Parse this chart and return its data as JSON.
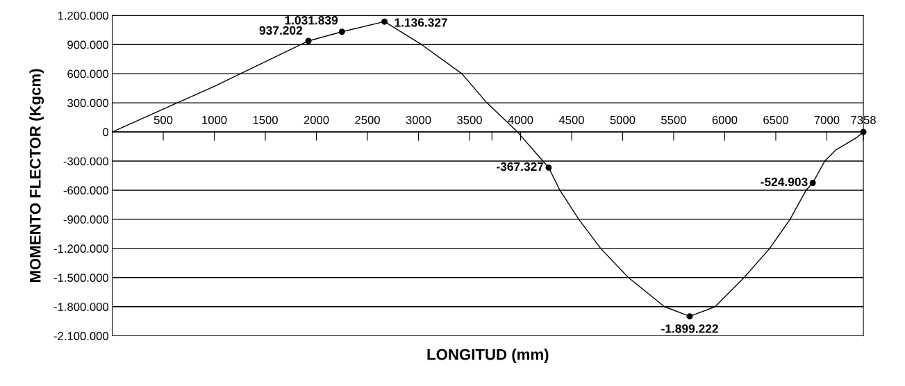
{
  "chart_data": {
    "type": "line",
    "xlabel": "LONGITUD (mm)",
    "ylabel": "MOMENTO FLECTOR (Kgcm)",
    "xlim": [
      0,
      7358
    ],
    "ylim": [
      -2100000,
      1200000
    ],
    "xticks": [
      500,
      1000,
      1500,
      2000,
      2500,
      3000,
      3500,
      {
        "value": 3720,
        "label": null
      },
      4000,
      4500,
      5000,
      5500,
      6000,
      6500,
      7000,
      7358
    ],
    "yticks": [
      {
        "value": -2100000,
        "label": "-2.100.000"
      },
      {
        "value": -1800000,
        "label": "-1.800.000"
      },
      {
        "value": -1500000,
        "label": "-1.500.000"
      },
      {
        "value": -1200000,
        "label": "-1.200.000"
      },
      {
        "value": -900000,
        "label": "-900.000"
      },
      {
        "value": -600000,
        "label": "-600.000"
      },
      {
        "value": -300000,
        "label": "-300.000"
      },
      0,
      {
        "value": 300000,
        "label": "300.000"
      },
      {
        "value": 600000,
        "label": "600.000"
      },
      {
        "value": 900000,
        "label": "900.000"
      },
      {
        "value": 1200000,
        "label": "1.200.000"
      }
    ],
    "grid": "y",
    "legend": false,
    "series": [
      {
        "color": "#000000",
        "marker": "none",
        "line_style": "solid",
        "x": [
          0,
          1000,
          1922,
          2250,
          2667,
          3030,
          3425,
          3670,
          3970,
          4275,
          4385,
          4570,
          4785,
          5056,
          5410,
          5657,
          5905,
          6190,
          6440,
          6640,
          6797,
          6862,
          6980,
          7090,
          7290,
          7358
        ],
        "values": [
          0,
          470000,
          937202,
          1031839,
          1136327,
          900000,
          600000,
          300000,
          0,
          -367327,
          -600000,
          -900000,
          -1200000,
          -1500000,
          -1800000,
          -1899222,
          -1800000,
          -1500000,
          -1200000,
          -900000,
          -600000,
          -524903,
          -300000,
          -184000,
          -60000,
          0
        ]
      },
      {
        "type": "scatter",
        "color": "#000000",
        "marker": "circle",
        "x": [
          1922,
          2250,
          2667,
          4275,
          5657,
          6862,
          7358
        ],
        "values": [
          937202,
          1031839,
          1136327,
          -367327,
          -1899222,
          -524903,
          0
        ],
        "value_labels": [
          "937.202",
          "1.031.839",
          "1.136.327",
          "-367.327",
          "-1.899.222",
          "-524.903",
          null
        ]
      }
    ]
  }
}
